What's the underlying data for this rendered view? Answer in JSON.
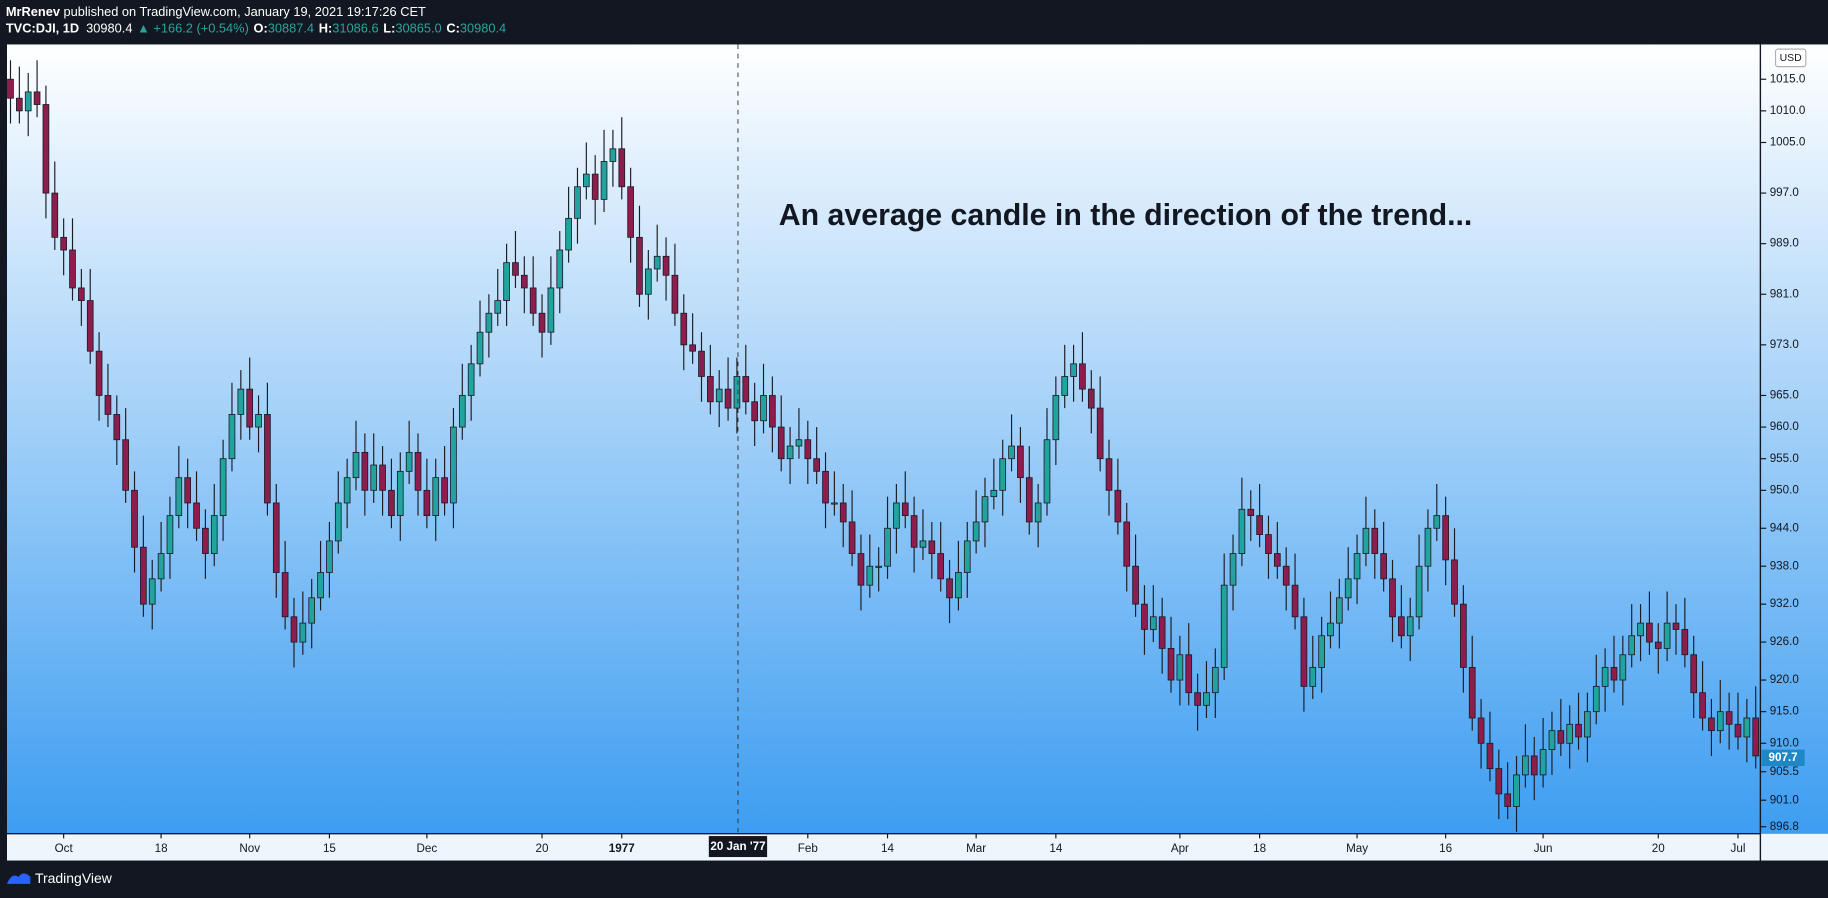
{
  "header": {
    "author": "MrRenev",
    "published": "published on TradingView.com, January 19, 2021 19:17:26 CET",
    "symbol": "TVC:DJI, 1D",
    "last": "30980.4",
    "change": "▲ +166.2 (+0.54%)",
    "ohlc": [
      {
        "label": "O:",
        "value": "30887.4"
      },
      {
        "label": "H:",
        "value": "31086.6"
      },
      {
        "label": "L:",
        "value": "30865.0"
      },
      {
        "label": "C:",
        "value": "30980.4"
      }
    ]
  },
  "footer": {
    "brand": "TradingView"
  },
  "chart_data": {
    "type": "candlestick",
    "annotation": "An average candle in the direction of the trend...",
    "currency": "USD",
    "crosshair_label": "20 Jan '77",
    "last_price": 907.7,
    "up_color": "#22a39f",
    "down_color": "#8c1d4d",
    "wick_color": "#1c1c24",
    "ylim": [
      895.7,
      1020.5
    ],
    "yticks": [
      {
        "value": 1015,
        "label": "1015.0"
      },
      {
        "value": 1010,
        "label": "1010.0"
      },
      {
        "value": 1005,
        "label": "1005.0"
      },
      {
        "value": 997,
        "label": "997.0"
      },
      {
        "value": 989,
        "label": "989.0"
      },
      {
        "value": 981,
        "label": "981.0"
      },
      {
        "value": 973,
        "label": "973.0"
      },
      {
        "value": 965,
        "label": "965.0"
      },
      {
        "value": 960,
        "label": "960.0"
      },
      {
        "value": 955,
        "label": "955.0"
      },
      {
        "value": 950,
        "label": "950.0"
      },
      {
        "value": 944,
        "label": "944.0"
      },
      {
        "value": 938,
        "label": "938.0"
      },
      {
        "value": 932,
        "label": "932.0"
      },
      {
        "value": 926,
        "label": "926.0"
      },
      {
        "value": 920,
        "label": "920.0"
      },
      {
        "value": 915,
        "label": "915.0"
      },
      {
        "value": 910,
        "label": "910.0"
      },
      905.5,
      {
        "value": 901,
        "label": "901.0"
      },
      896.8
    ],
    "categories": [
      null,
      null,
      null,
      null,
      null,
      null,
      "Oct",
      null,
      null,
      null,
      null,
      null,
      null,
      null,
      null,
      null,
      null,
      "18",
      null,
      null,
      null,
      null,
      null,
      null,
      null,
      null,
      null,
      "Nov",
      null,
      null,
      null,
      null,
      null,
      null,
      null,
      null,
      "15",
      null,
      null,
      null,
      null,
      null,
      null,
      null,
      null,
      null,
      null,
      "Dec",
      null,
      null,
      null,
      null,
      null,
      null,
      null,
      null,
      null,
      null,
      null,
      null,
      "20",
      null,
      null,
      null,
      null,
      null,
      null,
      null,
      null,
      "1977",
      null,
      null,
      null,
      null,
      null,
      null,
      null,
      null,
      null,
      null,
      null,
      null,
      null,
      null,
      null,
      null,
      null,
      null,
      null,
      null,
      "Feb",
      null,
      null,
      null,
      null,
      null,
      null,
      null,
      null,
      "14",
      null,
      null,
      null,
      null,
      null,
      null,
      null,
      null,
      null,
      "Mar",
      null,
      null,
      null,
      null,
      null,
      null,
      null,
      null,
      "14",
      null,
      null,
      null,
      null,
      null,
      null,
      null,
      null,
      null,
      null,
      null,
      null,
      null,
      "Apr",
      null,
      null,
      null,
      null,
      null,
      null,
      null,
      null,
      "18",
      null,
      null,
      null,
      null,
      null,
      null,
      null,
      null,
      null,
      null,
      "May",
      null,
      null,
      null,
      null,
      null,
      null,
      null,
      null,
      null,
      "16",
      null,
      null,
      null,
      null,
      null,
      null,
      null,
      null,
      null,
      null,
      "Jun",
      null,
      null,
      null,
      null,
      null,
      null,
      null,
      null,
      null,
      null,
      null,
      null,
      "20",
      null,
      null,
      null,
      null,
      null,
      null,
      null,
      null,
      "Jul",
      null,
      null
    ],
    "open": [
      1015,
      1012,
      1010,
      1013,
      1011,
      997,
      990,
      988,
      982,
      980,
      972,
      965,
      962,
      958,
      950,
      941,
      932,
      936,
      940,
      946,
      952,
      948,
      944,
      940,
      946,
      955,
      962,
      966,
      960,
      962,
      948,
      937,
      930,
      926,
      929,
      933,
      937,
      942,
      948,
      952,
      956,
      950,
      954,
      950,
      946,
      953,
      956,
      950,
      946,
      952,
      948,
      960,
      965,
      970,
      975,
      978,
      980,
      986,
      984,
      982,
      978,
      975,
      982,
      988,
      993,
      998,
      1000,
      996,
      1002,
      1004,
      998,
      990,
      981,
      985,
      987,
      984,
      978,
      973,
      972,
      968,
      964,
      966,
      963,
      968,
      964,
      961,
      965,
      960,
      955,
      957,
      958,
      955,
      953,
      948,
      948,
      945,
      940,
      935,
      938,
      938,
      944,
      948,
      946,
      941,
      942,
      940,
      936,
      933,
      937,
      942,
      945,
      949,
      950,
      955,
      957,
      952,
      945,
      948,
      958,
      965,
      968,
      970,
      966,
      963,
      955,
      950,
      945,
      938,
      932,
      928,
      930,
      925,
      920,
      924,
      918,
      916,
      918,
      922,
      935,
      940,
      947,
      946,
      943,
      940,
      938,
      935,
      930,
      919,
      922,
      927,
      929,
      933,
      936,
      940,
      944,
      940,
      936,
      930,
      927,
      930,
      938,
      944,
      946,
      939,
      932,
      922,
      914,
      910,
      906,
      902,
      900,
      905,
      908,
      905,
      909,
      912,
      910,
      913,
      911,
      915,
      919,
      922,
      920,
      924,
      927,
      929,
      926,
      925,
      929,
      928,
      924,
      918,
      914,
      912,
      915,
      913,
      911,
      914
    ],
    "high": [
      1018,
      1017,
      1016,
      1018,
      1014,
      1002,
      993,
      993,
      985,
      985,
      975,
      970,
      965,
      963,
      953,
      946,
      939,
      945,
      949,
      957,
      955,
      953,
      947,
      951,
      958,
      967,
      969,
      971,
      965,
      967,
      951,
      942,
      933,
      934,
      936,
      942,
      945,
      953,
      955,
      961,
      959,
      959,
      957,
      955,
      956,
      961,
      959,
      955,
      955,
      957,
      963,
      970,
      973,
      980,
      981,
      985,
      989,
      991,
      987,
      987,
      981,
      987,
      991,
      998,
      1001,
      1005,
      1003,
      1007,
      1007,
      1009,
      1001,
      995,
      988,
      992,
      990,
      989,
      981,
      978,
      975,
      973,
      969,
      971,
      971,
      973,
      967,
      970,
      968,
      965,
      960,
      963,
      961,
      960,
      956,
      953,
      951,
      950,
      943,
      943,
      941,
      949,
      951,
      953,
      949,
      947,
      945,
      945,
      939,
      942,
      945,
      950,
      952,
      955,
      958,
      962,
      960,
      957,
      951,
      963,
      968,
      973,
      973,
      975,
      969,
      968,
      958,
      955,
      948,
      943,
      935,
      935,
      933,
      930,
      927,
      929,
      921,
      923,
      925,
      940,
      943,
      952,
      950,
      951,
      946,
      945,
      941,
      940,
      933,
      927,
      930,
      934,
      936,
      941,
      943,
      949,
      947,
      945,
      939,
      935,
      933,
      943,
      947,
      951,
      949,
      944,
      935,
      927,
      917,
      915,
      909,
      907,
      908,
      913,
      911,
      914,
      915,
      917,
      916,
      918,
      918,
      924,
      925,
      927,
      927,
      932,
      932,
      934,
      929,
      934,
      932,
      933,
      927,
      923,
      917,
      920,
      918,
      918,
      917,
      919
    ],
    "low": [
      1008,
      1008,
      1006,
      1009,
      993,
      988,
      984,
      980,
      976,
      970,
      961,
      960,
      954,
      948,
      937,
      930,
      928,
      934,
      936,
      944,
      944,
      942,
      936,
      938,
      942,
      953,
      958,
      958,
      956,
      946,
      933,
      928,
      922,
      924,
      925,
      931,
      933,
      940,
      944,
      950,
      946,
      948,
      946,
      944,
      942,
      951,
      946,
      944,
      942,
      946,
      944,
      958,
      961,
      968,
      971,
      976,
      976,
      982,
      978,
      976,
      971,
      973,
      978,
      986,
      989,
      996,
      992,
      994,
      998,
      996,
      986,
      979,
      977,
      983,
      980,
      976,
      969,
      970,
      964,
      962,
      960,
      961,
      959,
      962,
      957,
      959,
      956,
      953,
      951,
      955,
      951,
      951,
      944,
      946,
      941,
      938,
      931,
      933,
      934,
      936,
      940,
      944,
      937,
      939,
      936,
      934,
      929,
      931,
      933,
      940,
      941,
      947,
      946,
      953,
      948,
      943,
      941,
      946,
      954,
      963,
      964,
      964,
      959,
      953,
      946,
      943,
      934,
      930,
      924,
      926,
      921,
      918,
      916,
      916,
      912,
      914,
      914,
      920,
      931,
      938,
      942,
      941,
      936,
      936,
      931,
      928,
      915,
      917,
      918,
      925,
      925,
      931,
      932,
      938,
      936,
      934,
      926,
      925,
      923,
      928,
      934,
      942,
      935,
      930,
      918,
      912,
      906,
      904,
      898,
      898,
      896,
      903,
      901,
      903,
      905,
      908,
      906,
      909,
      907,
      913,
      915,
      918,
      916,
      922,
      923,
      924,
      921,
      923,
      924,
      922,
      914,
      912,
      908,
      910,
      909,
      909,
      907,
      906
    ],
    "close": [
      1012,
      1010,
      1013,
      1011,
      997,
      990,
      988,
      982,
      980,
      972,
      965,
      962,
      958,
      950,
      941,
      932,
      936,
      940,
      946,
      952,
      948,
      944,
      940,
      946,
      955,
      962,
      966,
      960,
      962,
      948,
      937,
      930,
      926,
      929,
      933,
      937,
      942,
      948,
      952,
      956,
      950,
      954,
      950,
      946,
      953,
      956,
      950,
      946,
      952,
      948,
      960,
      965,
      970,
      975,
      978,
      980,
      986,
      984,
      982,
      978,
      975,
      982,
      988,
      993,
      998,
      1000,
      996,
      1002,
      1004,
      998,
      990,
      981,
      985,
      987,
      984,
      978,
      973,
      972,
      968,
      964,
      966,
      963,
      968,
      964,
      961,
      965,
      960,
      955,
      957,
      958,
      955,
      953,
      948,
      948,
      945,
      940,
      935,
      938,
      938,
      944,
      948,
      946,
      941,
      942,
      940,
      936,
      933,
      937,
      942,
      945,
      949,
      950,
      955,
      957,
      952,
      945,
      948,
      958,
      965,
      968,
      970,
      966,
      963,
      955,
      950,
      945,
      938,
      932,
      928,
      930,
      925,
      920,
      924,
      918,
      916,
      918,
      922,
      935,
      940,
      947,
      946,
      943,
      940,
      938,
      935,
      930,
      919,
      922,
      927,
      929,
      933,
      936,
      940,
      944,
      940,
      936,
      930,
      927,
      930,
      938,
      944,
      946,
      939,
      932,
      922,
      914,
      910,
      906,
      902,
      900,
      905,
      908,
      905,
      909,
      912,
      910,
      913,
      911,
      915,
      919,
      922,
      920,
      924,
      927,
      929,
      926,
      925,
      929,
      928,
      924,
      918,
      914,
      912,
      915,
      913,
      911,
      914,
      908
    ]
  }
}
